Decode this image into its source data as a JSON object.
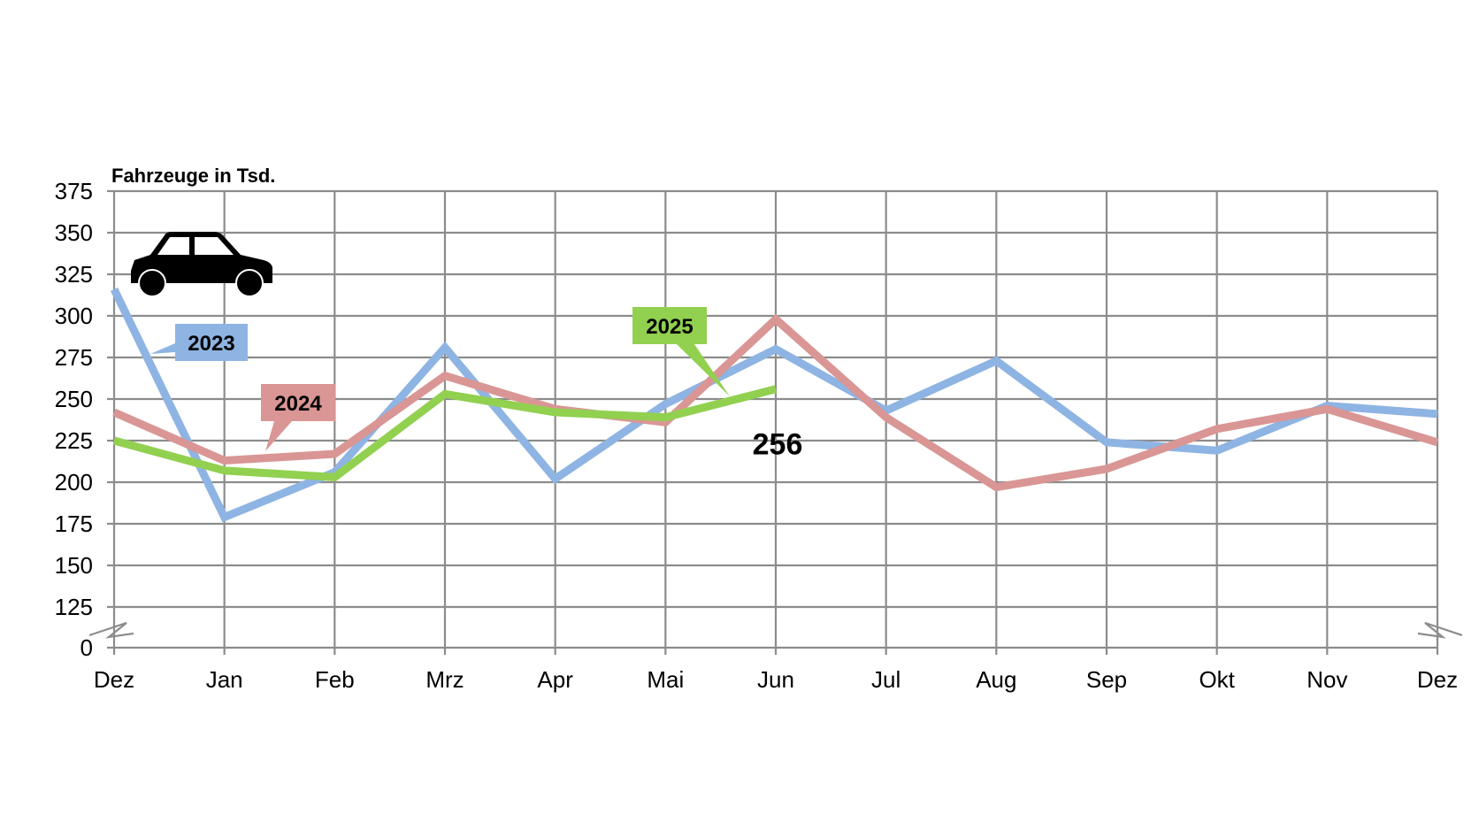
{
  "chart_data": {
    "type": "line",
    "ylabel": "Fahrzeuge in Tsd.",
    "categories": [
      "Dez",
      "Jan",
      "Feb",
      "Mrz",
      "Apr",
      "Mai",
      "Jun",
      "Jul",
      "Aug",
      "Sep",
      "Okt",
      "Nov",
      "Dez"
    ],
    "y_ticks": [
      0,
      125,
      150,
      175,
      200,
      225,
      250,
      275,
      300,
      325,
      350,
      375
    ],
    "ylim": [
      125,
      375
    ],
    "axis_break": true,
    "grid": true,
    "series": [
      {
        "name": "2023",
        "color": "#8EB4E3",
        "values": [
          316,
          179,
          206,
          281,
          202,
          247,
          280,
          243,
          273,
          224,
          219,
          246,
          241
        ]
      },
      {
        "name": "2024",
        "color": "#D99694",
        "values": [
          242,
          213,
          217,
          264,
          244,
          236,
          298,
          239,
          197,
          208,
          232,
          244,
          224
        ]
      },
      {
        "name": "2025",
        "color": "#92D050",
        "values": [
          225,
          207,
          203,
          253,
          242,
          239,
          256,
          null,
          null,
          null,
          null,
          null,
          null
        ]
      }
    ],
    "value_label": "256",
    "icon": "car-icon"
  }
}
